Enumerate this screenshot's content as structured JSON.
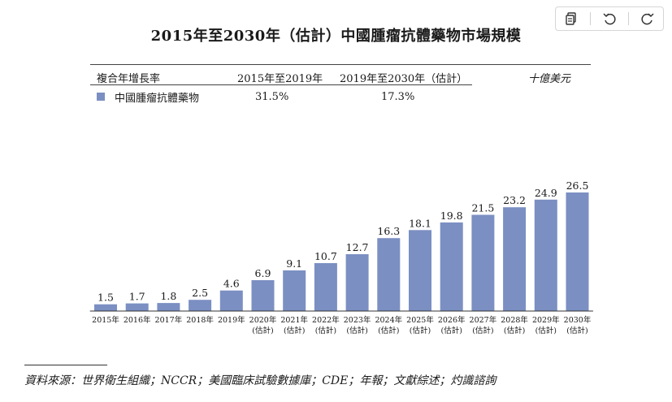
{
  "title": "2015年至2030年（估計）中國腫瘤抗體藥物市場規模",
  "toolbar": {
    "copy_icon": "copy-icon",
    "undo_icon": "undo-icon",
    "redo_icon": "redo-icon"
  },
  "table": {
    "header": {
      "label": "複合年增長率",
      "period1": "2015年至2019年",
      "period2": "2019年至2030年（估計）",
      "unit": "十億美元"
    },
    "row": {
      "name": "中國腫瘤抗體藥物",
      "cagr1": "31.5%",
      "cagr2": "17.3%"
    }
  },
  "chart_data": {
    "type": "bar",
    "categories": [
      "2015年",
      "2016年",
      "2017年",
      "2018年",
      "2019年",
      "2020年",
      "2021年",
      "2022年",
      "2023年",
      "2024年",
      "2025年",
      "2026年",
      "2027年",
      "2028年",
      "2029年",
      "2030年"
    ],
    "sublabels": [
      "",
      "",
      "",
      "",
      "",
      "(估計)",
      "(估計)",
      "(估計)",
      "(估計)",
      "(估計)",
      "(估計)",
      "(估計)",
      "(估計)",
      "(估計)",
      "(估計)",
      "(估計)"
    ],
    "series": [
      {
        "name": "中國腫瘤抗體藥物",
        "values": [
          1.5,
          1.7,
          1.8,
          2.5,
          4.6,
          6.9,
          9.1,
          10.7,
          12.7,
          16.3,
          18.1,
          19.8,
          21.5,
          23.2,
          24.9,
          26.5
        ],
        "labels": [
          "1.5",
          "1.7",
          "1.8",
          "2.5",
          "4.6",
          "6.9",
          "9.1",
          "10.7",
          "12.7",
          "16.3",
          "18.1",
          "19.8",
          "21.5",
          "23.2",
          "24.9",
          "26.5"
        ]
      }
    ],
    "ylim": [
      0,
      26.5
    ],
    "color": "#7b8fc2",
    "grid": false
  },
  "source": "資料來源：世界衛生組織；NCCR；美國臨床試驗數據庫；CDE；年報；文獻綜述；灼識諮詢"
}
